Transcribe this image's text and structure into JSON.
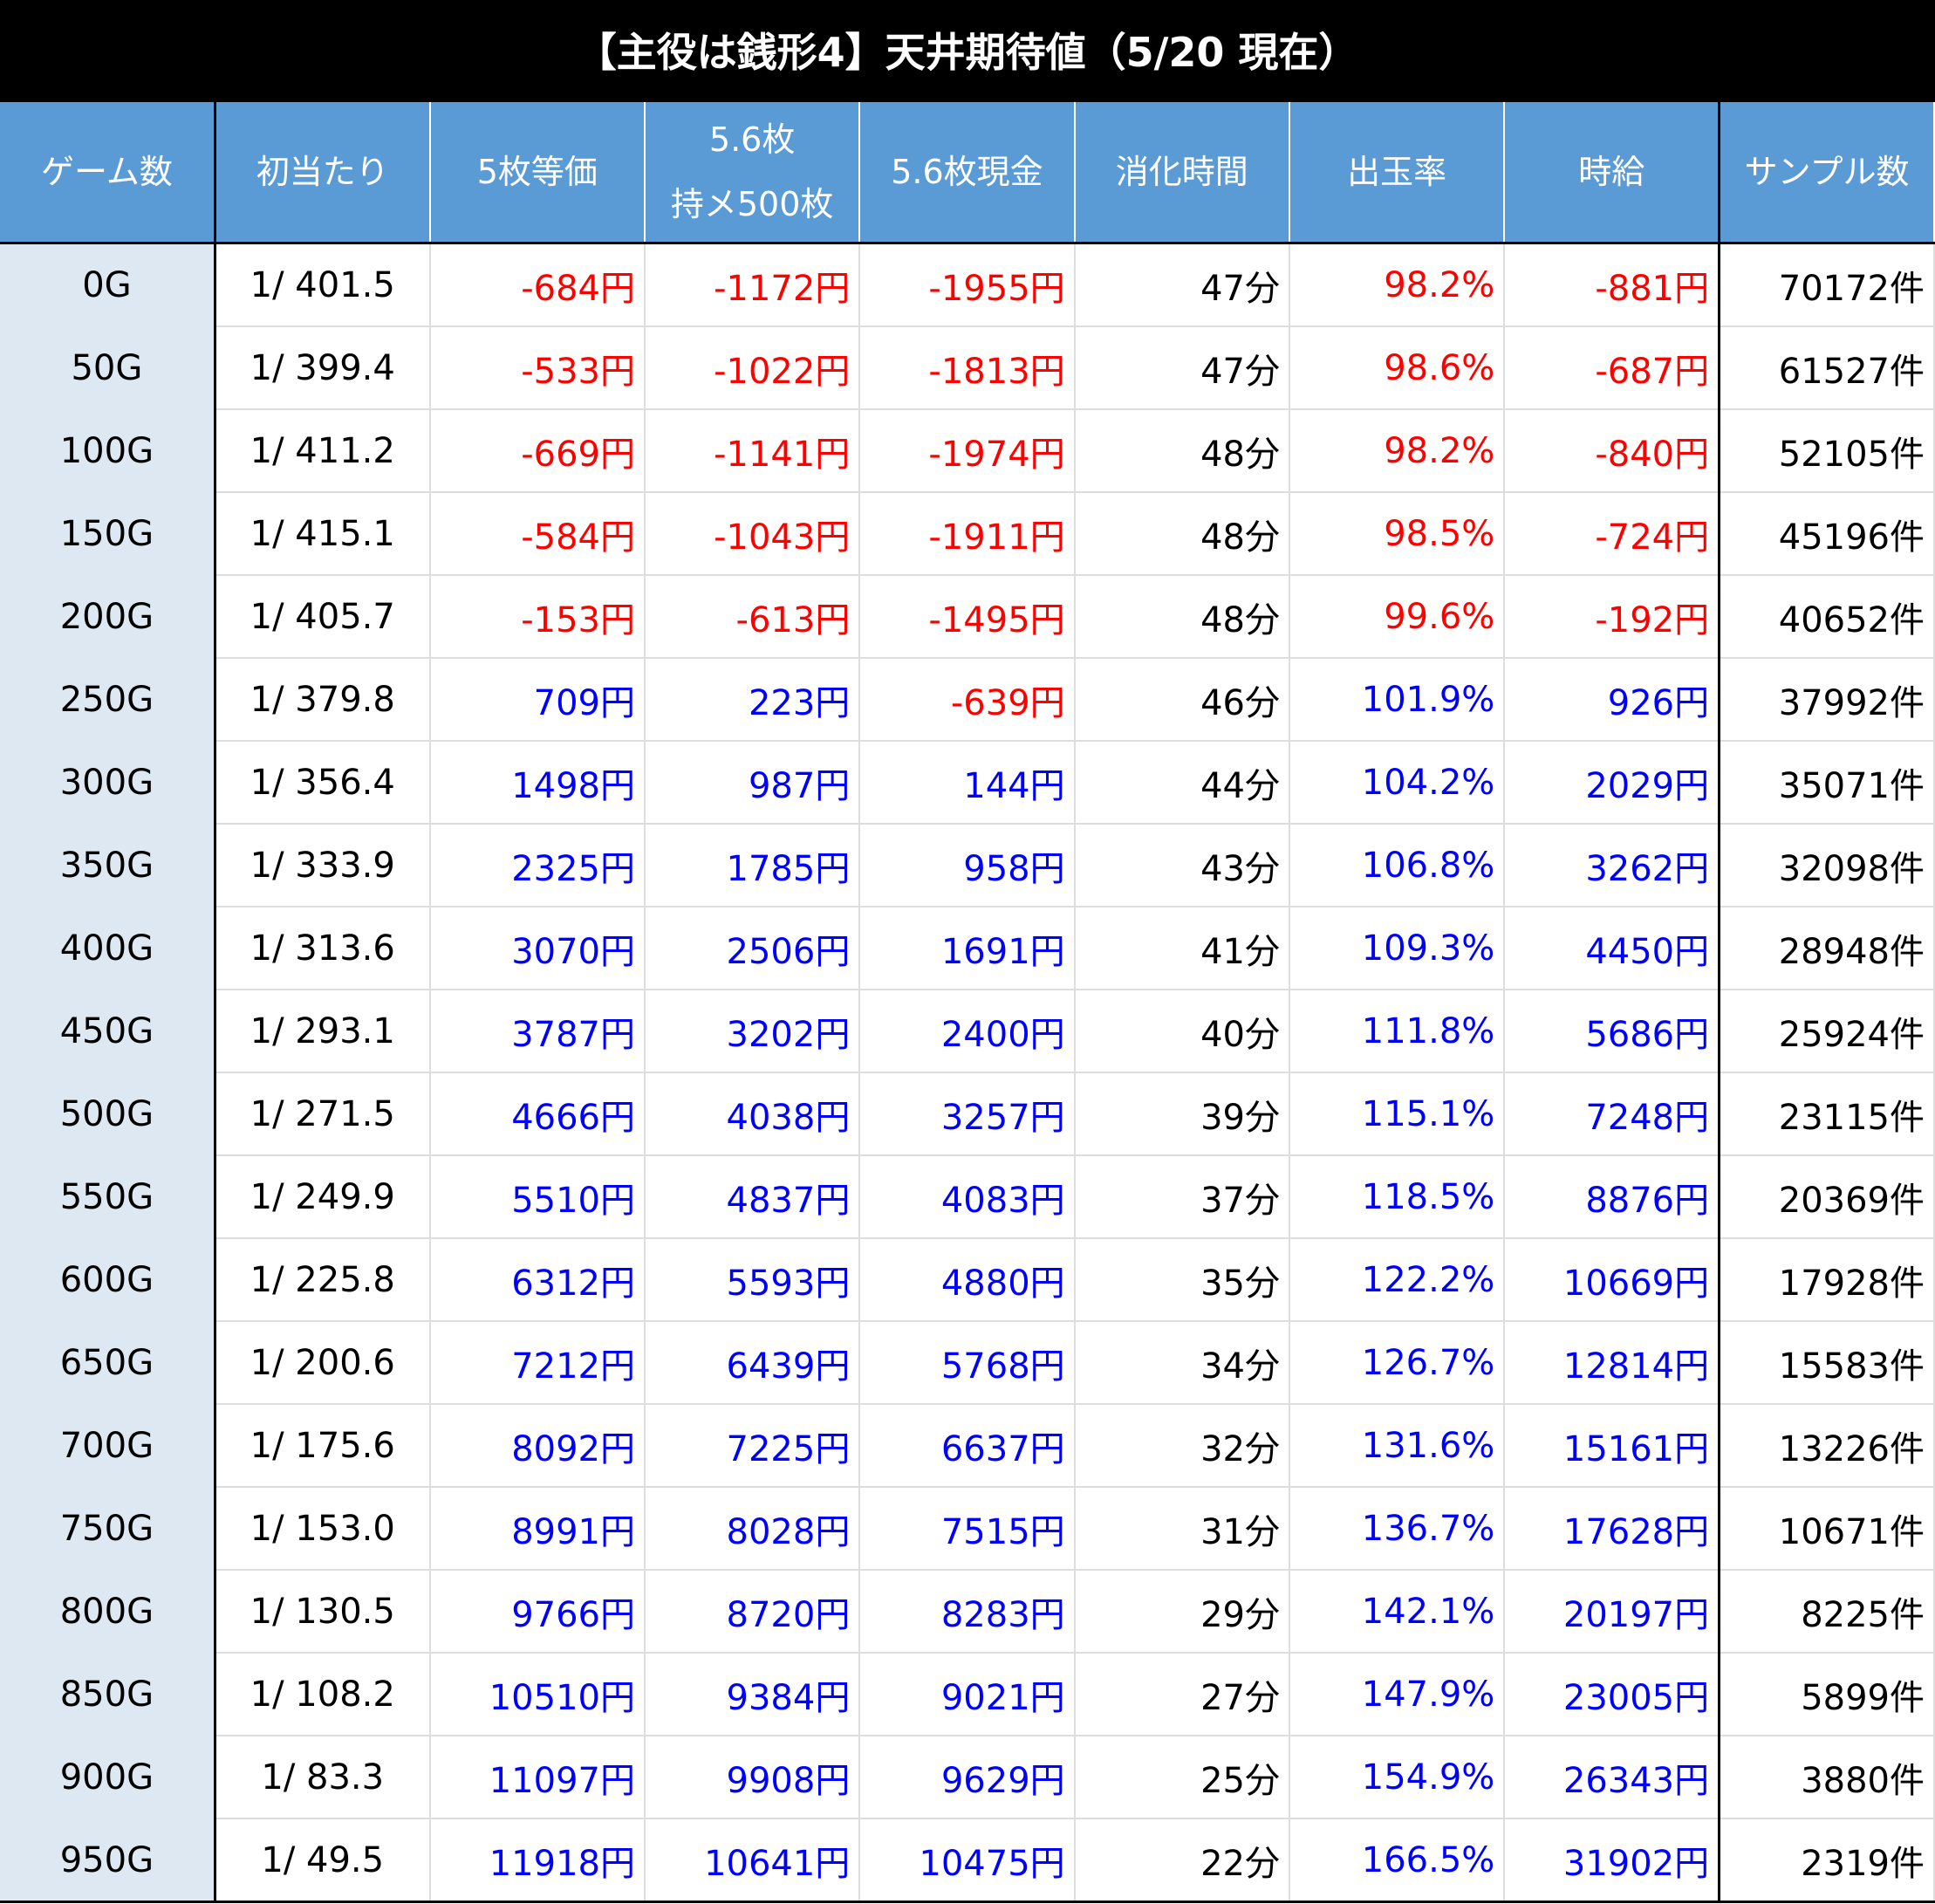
{
  "header": {
    "title": "【主役は銭形4】天井期待値（5/20 現在）"
  },
  "table": {
    "columns": [
      "ゲーム数",
      "初当たり",
      "5枚等価",
      "5.6枚\n持メ500枚",
      "5.6枚現金",
      "消化時間",
      "出玉率",
      "時給",
      "サンプル数"
    ],
    "rows": [
      [
        "0G",
        "1/ 401.5",
        "-684円",
        "-1172円",
        "-1955円",
        "47分",
        "98.2%",
        "-881円",
        "70172件"
      ],
      [
        "50G",
        "1/ 399.4",
        "-533円",
        "-1022円",
        "-1813円",
        "47分",
        "98.6%",
        "-687円",
        "61527件"
      ],
      [
        "100G",
        "1/ 411.2",
        "-669円",
        "-1141円",
        "-1974円",
        "48分",
        "98.2%",
        "-840円",
        "52105件"
      ],
      [
        "150G",
        "1/ 415.1",
        "-584円",
        "-1043円",
        "-1911円",
        "48分",
        "98.5%",
        "-724円",
        "45196件"
      ],
      [
        "200G",
        "1/ 405.7",
        "-153円",
        "-613円",
        "-1495円",
        "48分",
        "99.6%",
        "-192円",
        "40652件"
      ],
      [
        "250G",
        "1/ 379.8",
        "709円",
        "223円",
        "-639円",
        "46分",
        "101.9%",
        "926円",
        "37992件"
      ],
      [
        "300G",
        "1/ 356.4",
        "1498円",
        "987円",
        "144円",
        "44分",
        "104.2%",
        "2029円",
        "35071件"
      ],
      [
        "350G",
        "1/ 333.9",
        "2325円",
        "1785円",
        "958円",
        "43分",
        "106.8%",
        "3262円",
        "32098件"
      ],
      [
        "400G",
        "1/ 313.6",
        "3070円",
        "2506円",
        "1691円",
        "41分",
        "109.3%",
        "4450円",
        "28948件"
      ],
      [
        "450G",
        "1/ 293.1",
        "3787円",
        "3202円",
        "2400円",
        "40分",
        "111.8%",
        "5686円",
        "25924件"
      ],
      [
        "500G",
        "1/ 271.5",
        "4666円",
        "4038円",
        "3257円",
        "39分",
        "115.1%",
        "7248円",
        "23115件"
      ],
      [
        "550G",
        "1/ 249.9",
        "5510円",
        "4837円",
        "4083円",
        "37分",
        "118.5%",
        "8876円",
        "20369件"
      ],
      [
        "600G",
        "1/ 225.8",
        "6312円",
        "5593円",
        "4880円",
        "35分",
        "122.2%",
        "10669円",
        "17928件"
      ],
      [
        "650G",
        "1/ 200.6",
        "7212円",
        "6439円",
        "5768円",
        "34分",
        "126.7%",
        "12814円",
        "15583件"
      ],
      [
        "700G",
        "1/ 175.6",
        "8092円",
        "7225円",
        "6637円",
        "32分",
        "131.6%",
        "15161円",
        "13226件"
      ],
      [
        "750G",
        "1/ 153.0",
        "8991円",
        "8028円",
        "7515円",
        "31分",
        "136.7%",
        "17628円",
        "10671件"
      ],
      [
        "800G",
        "1/ 130.5",
        "9766円",
        "8720円",
        "8283円",
        "29分",
        "142.1%",
        "20197円",
        "8225件"
      ],
      [
        "850G",
        "1/ 108.2",
        "10510円",
        "9384円",
        "9021円",
        "27分",
        "147.9%",
        "23005円",
        "5899件"
      ],
      [
        "900G",
        "1/ 83.3",
        "11097円",
        "9908円",
        "9629円",
        "25分",
        "154.9%",
        "26343円",
        "3880件"
      ],
      [
        "950G",
        "1/ 49.5",
        "11918円",
        "10641円",
        "10475円",
        "22分",
        "166.5%",
        "31902円",
        "2319件"
      ]
    ]
  }
}
